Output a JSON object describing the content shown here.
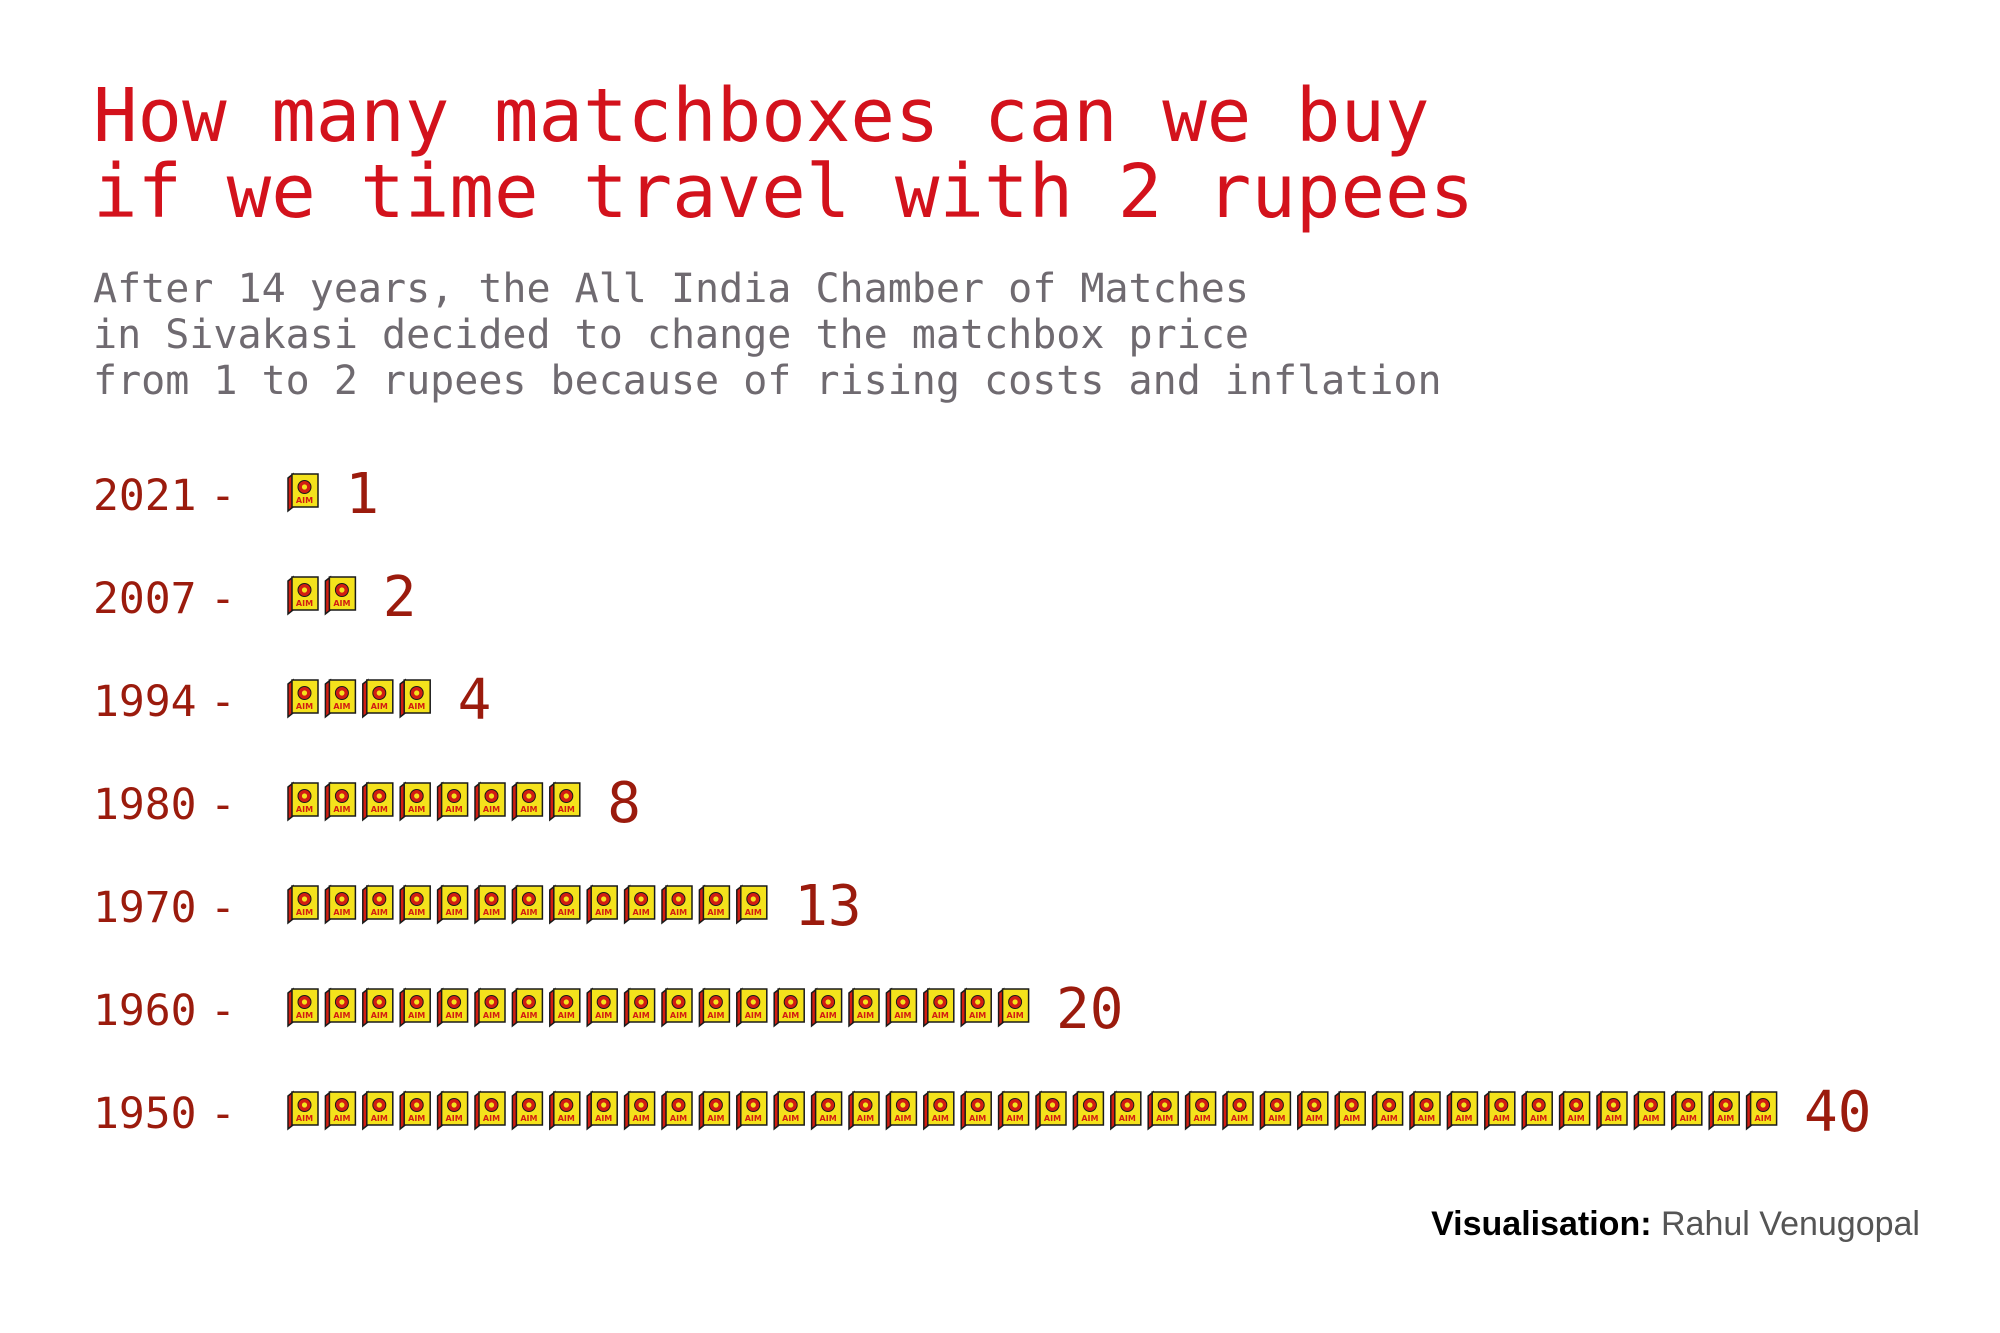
{
  "header": {
    "title_lines": [
      "How many matchboxes can we buy",
      "if we time travel with 2 rupees"
    ],
    "subtitle_lines": [
      "After 14 years, the All India Chamber of Matches",
      "in Sivakasi decided to change the matchbox price",
      "from 1 to 2 rupees because of rising costs and inflation"
    ]
  },
  "credit": {
    "label": "Visualisation:",
    "author": "Rahul Venugopal"
  },
  "colors": {
    "title": "#d3121c",
    "subtitle": "#6f6a70",
    "axis_text": "#9b1b0d",
    "box_face": "#f4e21c",
    "box_side": "#d21d12",
    "box_outline": "#1a1a1a"
  },
  "icons": {
    "unit": "matchbox-icon"
  },
  "chart_data": {
    "type": "pictograph",
    "categories": [
      "2021",
      "2007",
      "1994",
      "1980",
      "1970",
      "1960",
      "1950"
    ],
    "values": [
      1,
      2,
      4,
      8,
      13,
      20,
      40
    ],
    "icon_label": "AIM"
  }
}
